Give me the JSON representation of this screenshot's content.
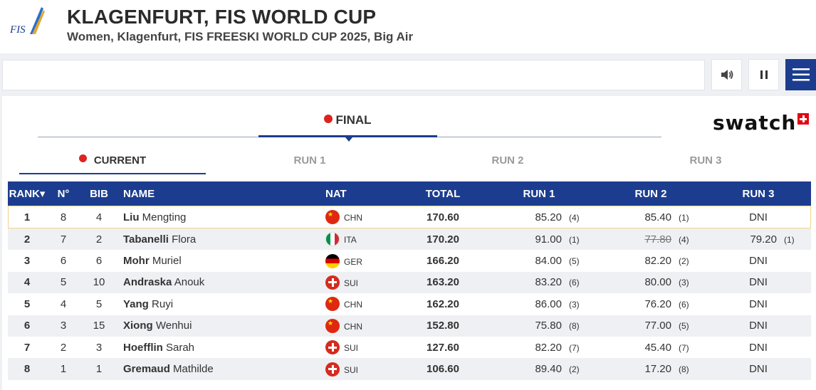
{
  "header": {
    "logo_text": "FIS",
    "title": "KLAGENFURT, FIS WORLD CUP",
    "subtitle": "Women, Klagenfurt, FIS FREESKI WORLD CUP 2025, Big Air"
  },
  "controls": {
    "search_value": "",
    "sound_icon": "speaker-icon",
    "pause_icon": "pause-icon",
    "menu_icon": "hamburger-menu-icon"
  },
  "tabs": {
    "main": "FINAL",
    "sponsor": "swatch",
    "sub": [
      "CURRENT",
      "RUN 1",
      "RUN 2",
      "RUN 3"
    ]
  },
  "table": {
    "headers": [
      "RANK▾",
      "N°",
      "BIB",
      "NAME",
      "NAT",
      "TOTAL",
      "RUN 1",
      "RUN 2",
      "RUN 3"
    ],
    "rows": [
      {
        "rank": "1",
        "no": "8",
        "bib": "4",
        "last": "Liu",
        "first": "Mengting",
        "nat": "CHN",
        "total": "170.60",
        "r1": "85.20",
        "r1rk": "(4)",
        "r2": "85.40",
        "r2rk": "(1)",
        "r2strike": false,
        "r3": "DNI",
        "r3rk": ""
      },
      {
        "rank": "2",
        "no": "7",
        "bib": "2",
        "last": "Tabanelli",
        "first": "Flora",
        "nat": "ITA",
        "total": "170.20",
        "r1": "91.00",
        "r1rk": "(1)",
        "r2": "77.80",
        "r2rk": "(4)",
        "r2strike": true,
        "r3": "79.20",
        "r3rk": "(1)"
      },
      {
        "rank": "3",
        "no": "6",
        "bib": "6",
        "last": "Mohr",
        "first": "Muriel",
        "nat": "GER",
        "total": "166.20",
        "r1": "84.00",
        "r1rk": "(5)",
        "r2": "82.20",
        "r2rk": "(2)",
        "r2strike": false,
        "r3": "DNI",
        "r3rk": ""
      },
      {
        "rank": "4",
        "no": "5",
        "bib": "10",
        "last": "Andraska",
        "first": "Anouk",
        "nat": "SUI",
        "total": "163.20",
        "r1": "83.20",
        "r1rk": "(6)",
        "r2": "80.00",
        "r2rk": "(3)",
        "r2strike": false,
        "r3": "DNI",
        "r3rk": ""
      },
      {
        "rank": "5",
        "no": "4",
        "bib": "5",
        "last": "Yang",
        "first": "Ruyi",
        "nat": "CHN",
        "total": "162.20",
        "r1": "86.00",
        "r1rk": "(3)",
        "r2": "76.20",
        "r2rk": "(6)",
        "r2strike": false,
        "r3": "DNI",
        "r3rk": ""
      },
      {
        "rank": "6",
        "no": "3",
        "bib": "15",
        "last": "Xiong",
        "first": "Wenhui",
        "nat": "CHN",
        "total": "152.80",
        "r1": "75.80",
        "r1rk": "(8)",
        "r2": "77.00",
        "r2rk": "(5)",
        "r2strike": false,
        "r3": "DNI",
        "r3rk": ""
      },
      {
        "rank": "7",
        "no": "2",
        "bib": "3",
        "last": "Hoefflin",
        "first": "Sarah",
        "nat": "SUI",
        "total": "127.60",
        "r1": "82.20",
        "r1rk": "(7)",
        "r2": "45.40",
        "r2rk": "(7)",
        "r2strike": false,
        "r3": "DNI",
        "r3rk": ""
      },
      {
        "rank": "8",
        "no": "1",
        "bib": "1",
        "last": "Gremaud",
        "first": "Mathilde",
        "nat": "SUI",
        "total": "106.60",
        "r1": "89.40",
        "r1rk": "(2)",
        "r2": "17.20",
        "r2rk": "(8)",
        "r2strike": false,
        "r3": "DNI",
        "r3rk": ""
      }
    ]
  },
  "colors": {
    "accent": "#1c3d8f",
    "live_dot": "#dd2222"
  }
}
